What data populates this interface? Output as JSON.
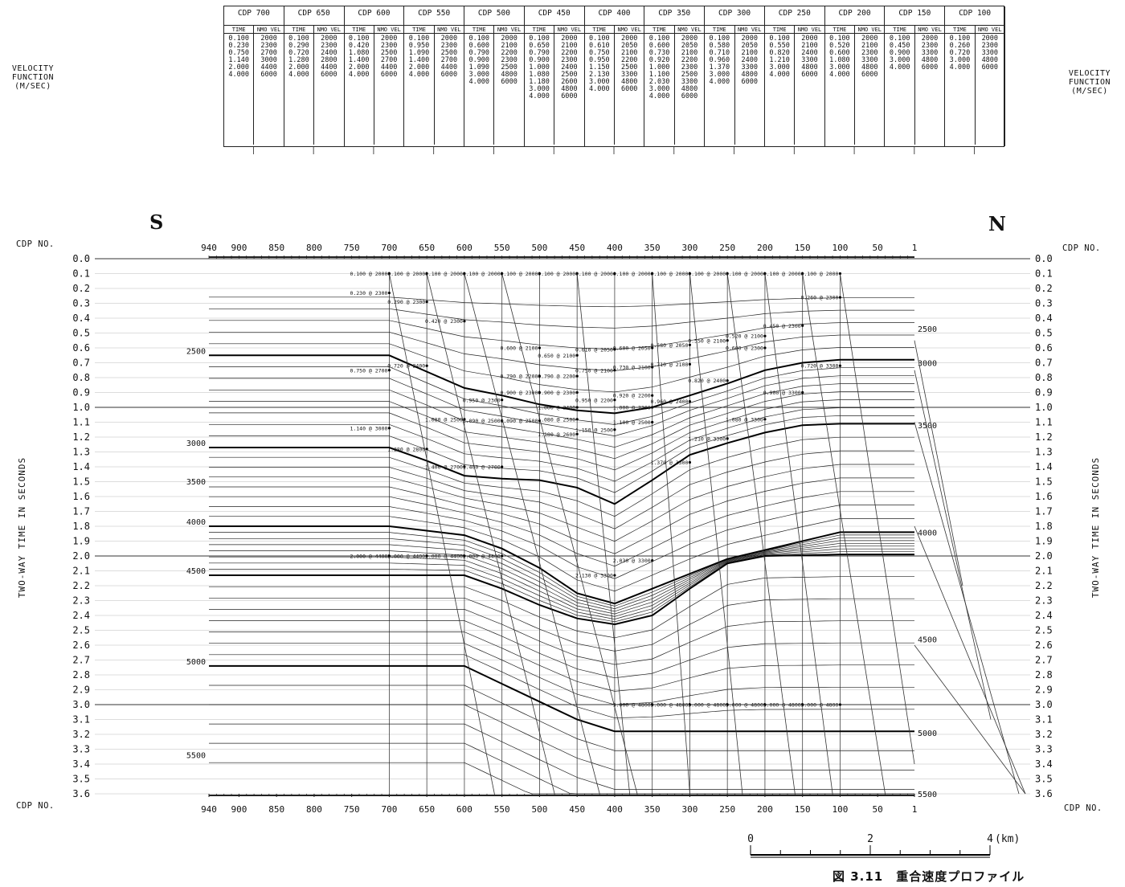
{
  "side_label": {
    "line1": "VELOCITY",
    "line2": "FUNCTION",
    "line3": "(M/SEC)"
  },
  "direction": {
    "left": "S",
    "right": "N"
  },
  "axis_labels": {
    "cdp_no": "CDP NO.",
    "time": "TWO-WAY TIME IN SECONDS"
  },
  "caption": "図 3.11　重合速度プロファイル",
  "scale_bar": {
    "ticks": [
      "0",
      "2",
      "4"
    ],
    "unit": "(km)"
  },
  "table": {
    "header_time": "TIME",
    "header_vel": "NMO VEL",
    "cdp_prefix": "CDP",
    "columns": [
      {
        "cdp": "700",
        "time": [
          "0.100",
          "0.230",
          "0.750",
          "1.140",
          "2.000",
          "4.000"
        ],
        "vel": [
          "2000",
          "2300",
          "2700",
          "3000",
          "4400",
          "6000"
        ]
      },
      {
        "cdp": "650",
        "time": [
          "0.100",
          "0.290",
          "0.720",
          "1.280",
          "2.000",
          "4.000"
        ],
        "vel": [
          "2000",
          "2300",
          "2400",
          "2800",
          "4400",
          "6000"
        ]
      },
      {
        "cdp": "600",
        "time": [
          "0.100",
          "0.420",
          "1.080",
          "1.400",
          "2.000",
          "4.000"
        ],
        "vel": [
          "2000",
          "2300",
          "2500",
          "2700",
          "4400",
          "6000"
        ]
      },
      {
        "cdp": "550",
        "time": [
          "0.100",
          "0.950",
          "1.090",
          "1.400",
          "2.000",
          "4.000"
        ],
        "vel": [
          "2000",
          "2300",
          "2500",
          "2700",
          "4400",
          "6000"
        ]
      },
      {
        "cdp": "500",
        "time": [
          "0.100",
          "0.600",
          "0.790",
          "0.900",
          "1.090",
          "3.000",
          "4.000"
        ],
        "vel": [
          "2000",
          "2100",
          "2200",
          "2300",
          "2500",
          "4800",
          "6000"
        ]
      },
      {
        "cdp": "450",
        "time": [
          "0.100",
          "0.650",
          "0.790",
          "0.900",
          "1.000",
          "1.080",
          "1.180",
          "3.000",
          "4.000"
        ],
        "vel": [
          "2000",
          "2100",
          "2200",
          "2300",
          "2400",
          "2500",
          "2600",
          "4800",
          "6000"
        ]
      },
      {
        "cdp": "400",
        "time": [
          "0.100",
          "0.610",
          "0.750",
          "0.950",
          "1.150",
          "2.130",
          "3.000",
          "4.000"
        ],
        "vel": [
          "2000",
          "2050",
          "2100",
          "2200",
          "2500",
          "3300",
          "4800",
          "6000"
        ]
      },
      {
        "cdp": "350",
        "time": [
          "0.100",
          "0.600",
          "0.730",
          "0.920",
          "1.000",
          "1.100",
          "2.030",
          "3.000",
          "4.000"
        ],
        "vel": [
          "2000",
          "2050",
          "2100",
          "2200",
          "2300",
          "2500",
          "3300",
          "4800",
          "6000"
        ]
      },
      {
        "cdp": "300",
        "time": [
          "0.100",
          "0.580",
          "0.710",
          "0.960",
          "1.370",
          "3.000",
          "4.000"
        ],
        "vel": [
          "2000",
          "2050",
          "2100",
          "2400",
          "3300",
          "4800",
          "6000"
        ]
      },
      {
        "cdp": "250",
        "time": [
          "0.100",
          "0.550",
          "0.820",
          "1.210",
          "3.000",
          "4.000"
        ],
        "vel": [
          "2000",
          "2100",
          "2400",
          "3300",
          "4800",
          "6000"
        ]
      },
      {
        "cdp": "200",
        "time": [
          "0.100",
          "0.520",
          "0.600",
          "1.080",
          "3.000",
          "4.000"
        ],
        "vel": [
          "2000",
          "2100",
          "2300",
          "3300",
          "4800",
          "6000"
        ]
      },
      {
        "cdp": "150",
        "time": [
          "0.100",
          "0.450",
          "0.900",
          "3.000",
          "4.000"
        ],
        "vel": [
          "2000",
          "2300",
          "3300",
          "4800",
          "6000"
        ]
      },
      {
        "cdp": "100",
        "time": [
          "0.100",
          "0.260",
          "0.720",
          "3.000",
          "4.000"
        ],
        "vel": [
          "2000",
          "2300",
          "3300",
          "4800",
          "6000"
        ]
      }
    ]
  },
  "chart_data": {
    "type": "line",
    "title": "",
    "xlabel": "CDP NO.",
    "ylabel": "TWO-WAY TIME IN SECONDS",
    "x_ticks": [
      "940",
      "900",
      "850",
      "800",
      "750",
      "700",
      "650",
      "600",
      "550",
      "500",
      "450",
      "400",
      "350",
      "300",
      "250",
      "200",
      "150",
      "100",
      "50",
      "1"
    ],
    "xlim": [
      940,
      1
    ],
    "y_ticks": [
      "0.0",
      "0.1",
      "0.2",
      "0.3",
      "0.4",
      "0.5",
      "0.6",
      "0.7",
      "0.8",
      "0.9",
      "1.0",
      "1.1",
      "1.2",
      "1.3",
      "1.4",
      "1.5",
      "1.6",
      "1.7",
      "1.8",
      "1.9",
      "2.0",
      "2.1",
      "2.2",
      "2.3",
      "2.4",
      "2.5",
      "2.6",
      "2.7",
      "2.8",
      "2.9",
      "3.0",
      "3.1",
      "3.2",
      "3.3",
      "3.4",
      "3.5",
      "3.6"
    ],
    "ylim": [
      0,
      3.6
    ],
    "bold_contours": [
      {
        "label_left": "2500",
        "label_right": "3000",
        "points": [
          [
            940,
            0.65
          ],
          [
            700,
            0.65
          ],
          [
            600,
            0.87
          ],
          [
            550,
            0.92
          ],
          [
            500,
            0.98
          ],
          [
            450,
            1.02
          ],
          [
            400,
            1.04
          ],
          [
            350,
            1.0
          ],
          [
            300,
            0.92
          ],
          [
            250,
            0.84
          ],
          [
            200,
            0.75
          ],
          [
            150,
            0.7
          ],
          [
            100,
            0.68
          ],
          [
            1,
            0.68
          ]
        ]
      },
      {
        "label_left": "3000",
        "label_right": "3500",
        "points": [
          [
            940,
            1.27
          ],
          [
            700,
            1.27
          ],
          [
            650,
            1.36
          ],
          [
            600,
            1.46
          ],
          [
            550,
            1.48
          ],
          [
            500,
            1.49
          ],
          [
            450,
            1.54
          ],
          [
            400,
            1.65
          ],
          [
            350,
            1.49
          ],
          [
            300,
            1.32
          ],
          [
            250,
            1.24
          ],
          [
            200,
            1.17
          ],
          [
            150,
            1.12
          ],
          [
            100,
            1.11
          ],
          [
            1,
            1.11
          ]
        ]
      },
      {
        "label_left": "4000",
        "label_right": "4000",
        "points": [
          [
            940,
            1.8
          ],
          [
            700,
            1.8
          ],
          [
            600,
            1.86
          ],
          [
            550,
            1.95
          ],
          [
            500,
            2.08
          ],
          [
            450,
            2.25
          ],
          [
            400,
            2.32
          ],
          [
            350,
            2.22
          ],
          [
            300,
            2.12
          ],
          [
            250,
            2.02
          ],
          [
            200,
            1.96
          ],
          [
            150,
            1.9
          ],
          [
            100,
            1.84
          ],
          [
            1,
            1.84
          ]
        ]
      },
      {
        "label_left": "4500",
        "label_right": "",
        "points": [
          [
            940,
            2.13
          ],
          [
            700,
            2.13
          ],
          [
            600,
            2.13
          ],
          [
            550,
            2.22
          ],
          [
            500,
            2.33
          ],
          [
            450,
            2.42
          ],
          [
            400,
            2.46
          ],
          [
            350,
            2.4
          ],
          [
            300,
            2.22
          ],
          [
            250,
            2.05
          ],
          [
            200,
            2.0
          ],
          [
            100,
            1.99
          ],
          [
            1,
            1.99
          ]
        ]
      },
      {
        "label_left": "5000",
        "label_right": "5000",
        "points": [
          [
            940,
            2.74
          ],
          [
            700,
            2.74
          ],
          [
            600,
            2.74
          ],
          [
            550,
            2.86
          ],
          [
            500,
            2.98
          ],
          [
            450,
            3.1
          ],
          [
            400,
            3.18
          ],
          [
            350,
            3.18
          ],
          [
            100,
            3.18
          ],
          [
            1,
            3.18
          ]
        ]
      }
    ],
    "contour_levels_left": [
      "2500",
      "3000",
      "3500",
      "4000",
      "4500",
      "5000",
      "5500"
    ],
    "contour_levels_right": [
      "2500",
      "3000",
      "3500",
      "4000",
      "4500",
      "5000",
      "5500"
    ],
    "pick_labels": [
      {
        "x": 700,
        "y": 0.1,
        "text": "0.100 @ 2000"
      },
      {
        "x": 650,
        "y": 0.1,
        "text": "0.100 @ 2000"
      },
      {
        "x": 600,
        "y": 0.1,
        "text": "0.100 @ 2000"
      },
      {
        "x": 550,
        "y": 0.1,
        "text": "0.100 @ 2000"
      },
      {
        "x": 500,
        "y": 0.1,
        "text": "0.100 @ 2000"
      },
      {
        "x": 450,
        "y": 0.1,
        "text": "0.100 @ 2000"
      },
      {
        "x": 400,
        "y": 0.1,
        "text": "0.100 @ 2000"
      },
      {
        "x": 350,
        "y": 0.1,
        "text": "0.100 @ 2000"
      },
      {
        "x": 300,
        "y": 0.1,
        "text": "0.100 @ 2000"
      },
      {
        "x": 250,
        "y": 0.1,
        "text": "0.100 @ 2000"
      },
      {
        "x": 200,
        "y": 0.1,
        "text": "0.100 @ 2000"
      },
      {
        "x": 150,
        "y": 0.1,
        "text": "0.100 @ 2000"
      },
      {
        "x": 100,
        "y": 0.1,
        "text": "0.100 @ 2000"
      },
      {
        "x": 700,
        "y": 0.23,
        "text": "0.230 @ 2300"
      },
      {
        "x": 650,
        "y": 0.29,
        "text": "0.290 @ 2300"
      },
      {
        "x": 600,
        "y": 0.42,
        "text": "0.420 @ 2300"
      },
      {
        "x": 100,
        "y": 0.26,
        "text": "0.260 @ 2300"
      },
      {
        "x": 150,
        "y": 0.45,
        "text": "0.450 @ 2300"
      },
      {
        "x": 200,
        "y": 0.52,
        "text": "0.520 @ 2100"
      },
      {
        "x": 250,
        "y": 0.55,
        "text": "0.550 @ 2100"
      },
      {
        "x": 300,
        "y": 0.58,
        "text": "0.580 @ 2050"
      },
      {
        "x": 350,
        "y": 0.6,
        "text": "0.600 @ 2050"
      },
      {
        "x": 400,
        "y": 0.61,
        "text": "0.610 @ 2050"
      },
      {
        "x": 500,
        "y": 0.6,
        "text": "0.600 @ 2100"
      },
      {
        "x": 450,
        "y": 0.65,
        "text": "0.650 @ 2100"
      },
      {
        "x": 200,
        "y": 0.6,
        "text": "0.600 @ 2300"
      },
      {
        "x": 650,
        "y": 0.72,
        "text": "0.720 @ 2400"
      },
      {
        "x": 700,
        "y": 0.75,
        "text": "0.750 @ 2700"
      },
      {
        "x": 100,
        "y": 0.72,
        "text": "0.720 @ 3300"
      },
      {
        "x": 300,
        "y": 0.71,
        "text": "0.710 @ 2100"
      },
      {
        "x": 350,
        "y": 0.73,
        "text": "0.730 @ 2100"
      },
      {
        "x": 400,
        "y": 0.75,
        "text": "0.750 @ 2100"
      },
      {
        "x": 500,
        "y": 0.79,
        "text": "0.790 @ 2200"
      },
      {
        "x": 450,
        "y": 0.79,
        "text": "0.790 @ 2200"
      },
      {
        "x": 250,
        "y": 0.82,
        "text": "0.820 @ 2400"
      },
      {
        "x": 150,
        "y": 0.9,
        "text": "0.900 @ 3300"
      },
      {
        "x": 500,
        "y": 0.9,
        "text": "0.900 @ 2300"
      },
      {
        "x": 450,
        "y": 0.9,
        "text": "0.900 @ 2300"
      },
      {
        "x": 350,
        "y": 0.92,
        "text": "0.920 @ 2200"
      },
      {
        "x": 400,
        "y": 0.95,
        "text": "0.950 @ 2200"
      },
      {
        "x": 550,
        "y": 0.95,
        "text": "0.950 @ 2300"
      },
      {
        "x": 300,
        "y": 0.96,
        "text": "0.960 @ 2400"
      },
      {
        "x": 450,
        "y": 1.0,
        "text": "1.000 @ 2400"
      },
      {
        "x": 350,
        "y": 1.0,
        "text": "1.000 @ 2300"
      },
      {
        "x": 600,
        "y": 1.08,
        "text": "1.080 @ 2500"
      },
      {
        "x": 550,
        "y": 1.09,
        "text": "1.090 @ 2500"
      },
      {
        "x": 500,
        "y": 1.09,
        "text": "1.090 @ 2500"
      },
      {
        "x": 450,
        "y": 1.08,
        "text": "1.080 @ 2500"
      },
      {
        "x": 200,
        "y": 1.08,
        "text": "1.080 @ 3300"
      },
      {
        "x": 350,
        "y": 1.1,
        "text": "1.100 @ 2500"
      },
      {
        "x": 700,
        "y": 1.14,
        "text": "1.140 @ 3000"
      },
      {
        "x": 400,
        "y": 1.15,
        "text": "1.150 @ 2500"
      },
      {
        "x": 450,
        "y": 1.18,
        "text": "1.180 @ 2600"
      },
      {
        "x": 250,
        "y": 1.21,
        "text": "1.210 @ 3300"
      },
      {
        "x": 650,
        "y": 1.28,
        "text": "1.280 @ 2800"
      },
      {
        "x": 300,
        "y": 1.37,
        "text": "1.370 @ 3300"
      },
      {
        "x": 600,
        "y": 1.4,
        "text": "1.400 @ 2700"
      },
      {
        "x": 550,
        "y": 1.4,
        "text": "1.400 @ 2700"
      },
      {
        "x": 700,
        "y": 2.0,
        "text": "2.000 @ 4400"
      },
      {
        "x": 650,
        "y": 2.0,
        "text": "2.000 @ 4400"
      },
      {
        "x": 600,
        "y": 2.0,
        "text": "2.000 @ 4400"
      },
      {
        "x": 550,
        "y": 2.0,
        "text": "2.000 @ 4400"
      },
      {
        "x": 350,
        "y": 2.03,
        "text": "2.030 @ 3300"
      },
      {
        "x": 400,
        "y": 2.13,
        "text": "2.130 @ 3300"
      },
      {
        "x": 350,
        "y": 3.0,
        "text": "3.000 @ 4800"
      },
      {
        "x": 300,
        "y": 3.0,
        "text": "3.000 @ 4800"
      },
      {
        "x": 250,
        "y": 3.0,
        "text": "3.000 @ 4800"
      },
      {
        "x": 200,
        "y": 3.0,
        "text": "3.000 @ 4800"
      },
      {
        "x": 150,
        "y": 3.0,
        "text": "3.000 @ 4800"
      },
      {
        "x": 100,
        "y": 3.0,
        "text": "3.000 @ 4800"
      }
    ],
    "grid": true
  }
}
